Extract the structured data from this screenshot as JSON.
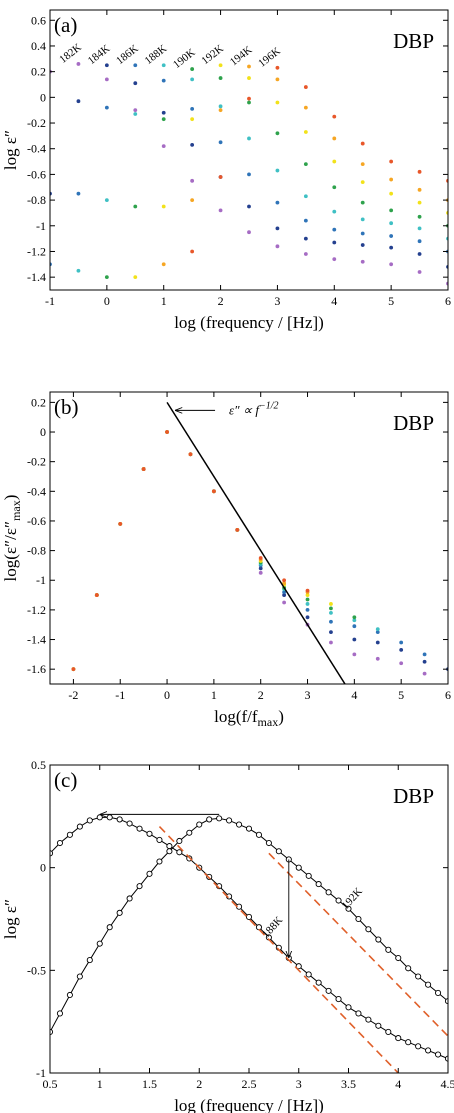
{
  "chart_data": [
    {
      "type": "scatter",
      "panel": "(a)",
      "tag": "DBP",
      "xlabel": "log (frequency / [Hz])",
      "ylabel": "log ε″",
      "xlim": [
        -1,
        6
      ],
      "xticks": [
        -1,
        0,
        1,
        2,
        3,
        4,
        5,
        6
      ],
      "ylim": [
        -1.5,
        0.68
      ],
      "yticks": [
        -1.4,
        -1.2,
        -1,
        -0.8,
        -0.6,
        -0.4,
        -0.2,
        0,
        0.2,
        0.4,
        0.6
      ],
      "x": [
        -1,
        -0.5,
        0,
        0.5,
        1,
        1.5,
        2,
        2.5,
        3,
        3.5,
        4,
        4.5,
        5,
        5.5,
        6
      ],
      "series": [
        {
          "name": "182K",
          "color": "#a66cc4",
          "values": [
            0.2,
            0.26,
            0.14,
            -0.1,
            -0.38,
            -0.65,
            -0.88,
            -1.05,
            -1.16,
            -1.22,
            -1.26,
            -1.28,
            -1.3,
            -1.36,
            -1.45
          ]
        },
        {
          "name": "184K",
          "color": "#24408f",
          "values": [
            -0.75,
            -0.03,
            0.25,
            0.11,
            -0.12,
            -0.37,
            -0.62,
            -0.85,
            -1.02,
            -1.1,
            -1.13,
            -1.15,
            -1.17,
            -1.22,
            -1.32
          ]
        },
        {
          "name": "186K",
          "color": "#2f74b8",
          "values": [
            -1.3,
            -0.75,
            -0.08,
            0.25,
            0.13,
            -0.09,
            -0.35,
            -0.6,
            -0.82,
            -0.96,
            -1.03,
            -1.06,
            -1.08,
            -1.12,
            -1.2
          ]
        },
        {
          "name": "188K",
          "color": "#3fc0c4",
          "values": [
            null,
            -1.35,
            -0.8,
            -0.13,
            0.25,
            0.14,
            -0.07,
            -0.32,
            -0.57,
            -0.77,
            -0.89,
            -0.95,
            -0.98,
            -1.02,
            -1.1
          ]
        },
        {
          "name": "190K",
          "color": "#2ea24c",
          "values": [
            null,
            null,
            -1.4,
            -0.85,
            -0.17,
            0.22,
            0.15,
            -0.04,
            -0.28,
            -0.52,
            -0.7,
            -0.82,
            -0.88,
            -0.93,
            -1.0
          ]
        },
        {
          "name": "192K",
          "color": "#f2e21a",
          "values": [
            null,
            null,
            null,
            -1.4,
            -0.85,
            -0.17,
            0.25,
            0.15,
            -0.04,
            -0.27,
            -0.5,
            -0.66,
            -0.75,
            -0.82,
            -0.9
          ]
        },
        {
          "name": "194K",
          "color": "#f6a623",
          "values": [
            null,
            null,
            null,
            null,
            -1.3,
            -0.8,
            -0.1,
            0.24,
            0.14,
            -0.08,
            -0.32,
            -0.52,
            -0.64,
            -0.72,
            -0.8
          ]
        },
        {
          "name": "196K",
          "color": "#e8572a",
          "values": [
            null,
            null,
            null,
            null,
            null,
            -1.2,
            -0.62,
            -0.01,
            0.23,
            0.08,
            -0.15,
            -0.36,
            -0.5,
            -0.58,
            -0.65
          ]
        }
      ]
    },
    {
      "type": "scatter",
      "panel": "(b)",
      "tag": "DBP",
      "xlabel": [
        "log(f/f",
        "max",
        ")"
      ],
      "ylabel": [
        "log(ε″/ε″",
        "max",
        ")"
      ],
      "xlim": [
        -2.5,
        6
      ],
      "xticks": [
        -2,
        -1,
        0,
        1,
        2,
        3,
        4,
        5,
        6
      ],
      "ylim": [
        -1.7,
        0.27
      ],
      "yticks": [
        -1.6,
        -1.4,
        -1.2,
        -1,
        -0.8,
        -0.6,
        -0.4,
        -0.2,
        0,
        0.2
      ],
      "x": [
        -2,
        -1.5,
        -1,
        -0.5,
        0,
        0.5,
        1,
        1.5,
        2,
        2.5,
        3,
        3.5,
        4,
        4.5,
        5,
        5.5,
        6
      ],
      "series": [
        {
          "color": "#a66cc4",
          "values": [
            null,
            null,
            null,
            -0.25,
            0,
            -0.15,
            -0.4,
            -0.66,
            -0.95,
            -1.15,
            -1.3,
            -1.42,
            -1.5,
            -1.53,
            -1.56,
            -1.63,
            null
          ]
        },
        {
          "color": "#24408f",
          "values": [
            null,
            null,
            null,
            -0.25,
            0,
            -0.15,
            -0.4,
            -0.66,
            -0.92,
            -1.1,
            -1.25,
            -1.35,
            -1.4,
            -1.42,
            -1.47,
            -1.55,
            -1.6
          ]
        },
        {
          "color": "#2f74b8",
          "values": [
            null,
            -1.1,
            -0.62,
            -0.25,
            0,
            -0.15,
            -0.4,
            -0.66,
            -0.9,
            -1.08,
            -1.2,
            -1.28,
            -1.31,
            -1.35,
            -1.42,
            -1.5,
            null
          ]
        },
        {
          "color": "#3fc0c4",
          "values": [
            -1.6,
            -1.1,
            -0.62,
            -0.25,
            0,
            -0.15,
            -0.4,
            -0.66,
            -0.89,
            -1.06,
            -1.16,
            -1.22,
            -1.27,
            -1.33,
            null,
            null,
            null
          ]
        },
        {
          "color": "#2ea24c",
          "values": [
            -1.6,
            -1.1,
            -0.62,
            -0.25,
            0,
            -0.15,
            -0.4,
            -0.66,
            -0.88,
            -1.05,
            -1.13,
            -1.19,
            -1.25,
            null,
            null,
            null,
            null
          ]
        },
        {
          "color": "#f2e21a",
          "values": [
            -1.6,
            -1.1,
            -0.62,
            -0.25,
            0,
            -0.15,
            -0.4,
            -0.66,
            -0.87,
            -1.03,
            -1.1,
            -1.16,
            null,
            null,
            null,
            null,
            null
          ]
        },
        {
          "color": "#f6a623",
          "values": [
            -1.6,
            -1.1,
            -0.62,
            -0.25,
            0,
            -0.15,
            -0.4,
            -0.66,
            -0.86,
            -1.02,
            -1.08,
            null,
            null,
            null,
            null,
            null,
            null
          ]
        },
        {
          "color": "#e8572a",
          "values": [
            -1.6,
            -1.1,
            -0.62,
            -0.25,
            0,
            -0.15,
            -0.4,
            -0.66,
            -0.85,
            -1.0,
            -1.07,
            null,
            null,
            null,
            null,
            null,
            null
          ]
        }
      ],
      "reference_line": {
        "x": [
          0,
          3.8
        ],
        "y": [
          0.2,
          -1.7
        ],
        "color": "#000000"
      },
      "annotation": {
        "text": "ε″ ∝ f",
        "exponent": "−1/2"
      }
    },
    {
      "type": "line",
      "panel": "(c)",
      "tag": "DBP",
      "xlabel": "log (frequency / [Hz])",
      "ylabel": "log ε″",
      "xlim": [
        0.5,
        4.5
      ],
      "xticks": [
        0.5,
        1,
        1.5,
        2,
        2.5,
        3,
        3.5,
        4,
        4.5
      ],
      "ylim": [
        -1,
        0.5
      ],
      "yticks": [
        -1,
        -0.5,
        0,
        0.5
      ],
      "x": [
        0.5,
        0.6,
        0.7,
        0.8,
        0.9,
        1.0,
        1.1,
        1.2,
        1.3,
        1.4,
        1.5,
        1.6,
        1.7,
        1.8,
        1.9,
        2.0,
        2.1,
        2.2,
        2.3,
        2.4,
        2.5,
        2.6,
        2.7,
        2.8,
        2.9,
        3.0,
        3.1,
        3.2,
        3.3,
        3.4,
        3.5,
        3.6,
        3.7,
        3.8,
        3.9,
        4.0,
        4.1,
        4.2,
        4.3,
        4.4,
        4.5
      ],
      "series": [
        {
          "name": "188K",
          "color": "#000000",
          "values": [
            0.07,
            0.12,
            0.16,
            0.2,
            0.23,
            0.245,
            0.245,
            0.235,
            0.215,
            0.19,
            0.165,
            0.135,
            0.105,
            0.075,
            0.045,
            0.0,
            -0.045,
            -0.09,
            -0.14,
            -0.19,
            -0.24,
            -0.29,
            -0.34,
            -0.39,
            -0.44,
            -0.48,
            -0.52,
            -0.56,
            -0.6,
            -0.64,
            -0.68,
            -0.71,
            -0.74,
            -0.77,
            -0.8,
            -0.83,
            -0.85,
            -0.87,
            -0.89,
            -0.91,
            -0.93
          ]
        },
        {
          "name": "192K",
          "color": "#000000",
          "values": [
            -0.8,
            -0.71,
            -0.62,
            -0.53,
            -0.45,
            -0.37,
            -0.29,
            -0.22,
            -0.15,
            -0.09,
            -0.03,
            0.03,
            0.08,
            0.13,
            0.17,
            0.21,
            0.235,
            0.24,
            0.23,
            0.21,
            0.19,
            0.16,
            0.12,
            0.08,
            0.04,
            0.0,
            -0.04,
            -0.08,
            -0.12,
            -0.16,
            -0.2,
            -0.25,
            -0.3,
            -0.35,
            -0.4,
            -0.44,
            -0.49,
            -0.53,
            -0.57,
            -0.61,
            -0.65
          ]
        }
      ],
      "fits": [
        {
          "x": [
            1.6,
            4.0
          ],
          "y": [
            0.2,
            -1.0
          ],
          "color": "#e0602a"
        },
        {
          "x": [
            2.7,
            4.5
          ],
          "y": [
            0.07,
            -0.82
          ],
          "color": "#e0602a"
        }
      ]
    }
  ]
}
